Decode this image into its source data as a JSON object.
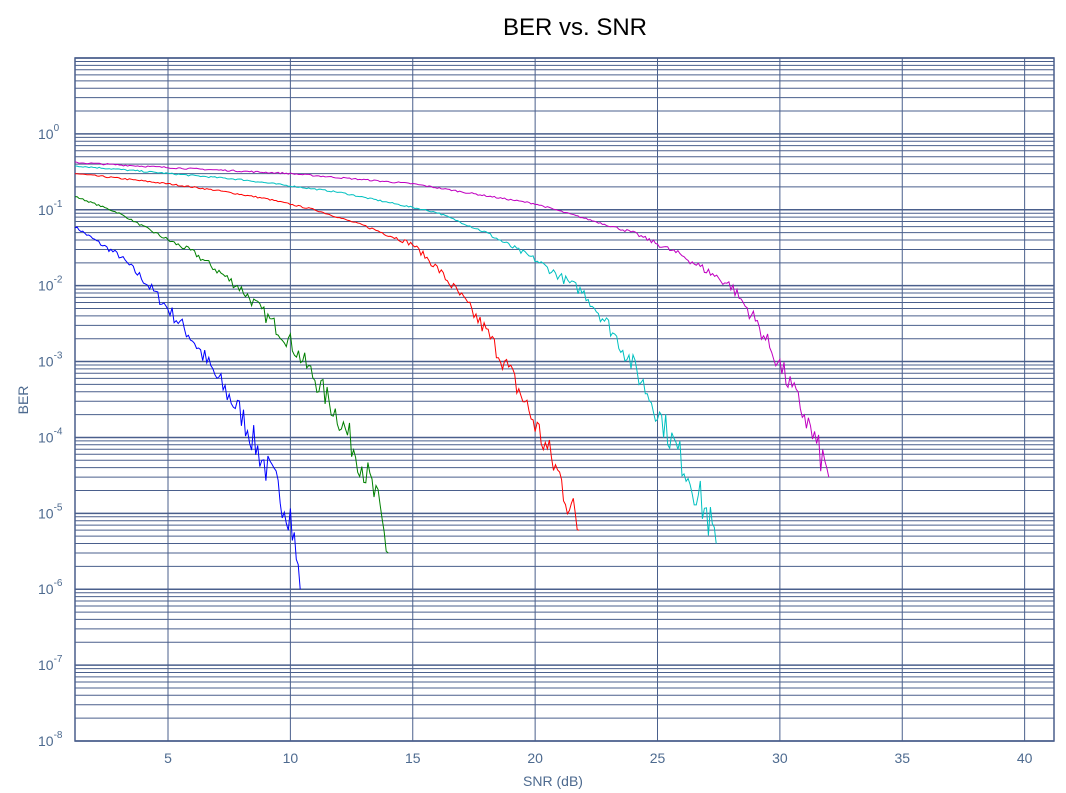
{
  "chart_data": {
    "type": "line",
    "title": "BER vs. SNR",
    "xlabel": "SNR (dB)",
    "ylabel": "BER",
    "xlim": [
      1.2,
      41.2
    ],
    "ylim_log10": [
      -8,
      1
    ],
    "y_scale": "log",
    "grid": true,
    "x_ticks": [
      5,
      10,
      15,
      20,
      25,
      30,
      35,
      40
    ],
    "y_tick_exponents": [
      0,
      -1,
      -2,
      -3,
      -4,
      -5,
      -6,
      -7,
      -8
    ],
    "colors": {
      "grid": "#4a5f8c",
      "axis_text": "#4d6a8f",
      "series": [
        "#0000ff",
        "#008000",
        "#ff0000",
        "#00c0c0",
        "#c000c0"
      ]
    },
    "series": [
      {
        "x": [
          1.2,
          2,
          3,
          4,
          5,
          6,
          7,
          8,
          9,
          10,
          10.4
        ],
        "y": [
          0.06,
          0.04,
          0.025,
          0.012,
          0.005,
          0.002,
          0.0006,
          0.0002,
          4e-05,
          1e-05,
          1e-06
        ]
      },
      {
        "x": [
          1.2,
          2,
          3,
          4,
          5,
          6,
          7,
          8,
          9,
          10,
          11,
          12,
          13,
          13.5,
          14
        ],
        "y": [
          0.15,
          0.12,
          0.09,
          0.06,
          0.04,
          0.028,
          0.016,
          0.009,
          0.004,
          0.0018,
          0.0006,
          0.00018,
          4e-05,
          1.5e-05,
          3e-06
        ]
      },
      {
        "x": [
          1.2,
          3,
          5,
          7,
          9,
          11,
          13,
          15,
          16,
          17,
          18,
          19,
          20,
          21,
          21.8
        ],
        "y": [
          0.3,
          0.26,
          0.22,
          0.18,
          0.14,
          0.1,
          0.062,
          0.035,
          0.017,
          0.007,
          0.0025,
          0.0007,
          0.00015,
          3e-05,
          6e-06
        ]
      },
      {
        "x": [
          1.2,
          4,
          8,
          12,
          16,
          18,
          20,
          22,
          23,
          24,
          25,
          26,
          27,
          27.4
        ],
        "y": [
          0.38,
          0.32,
          0.25,
          0.17,
          0.092,
          0.05,
          0.022,
          0.008,
          0.003,
          0.0009,
          0.00022,
          5e-05,
          1e-05,
          4e-06
        ]
      },
      {
        "x": [
          1.2,
          5,
          10,
          15,
          20,
          24,
          26,
          28,
          29,
          30,
          31,
          32
        ],
        "y": [
          0.42,
          0.36,
          0.3,
          0.22,
          0.12,
          0.05,
          0.025,
          0.01,
          0.0035,
          0.0009,
          0.0002,
          3e-05
        ]
      }
    ]
  }
}
